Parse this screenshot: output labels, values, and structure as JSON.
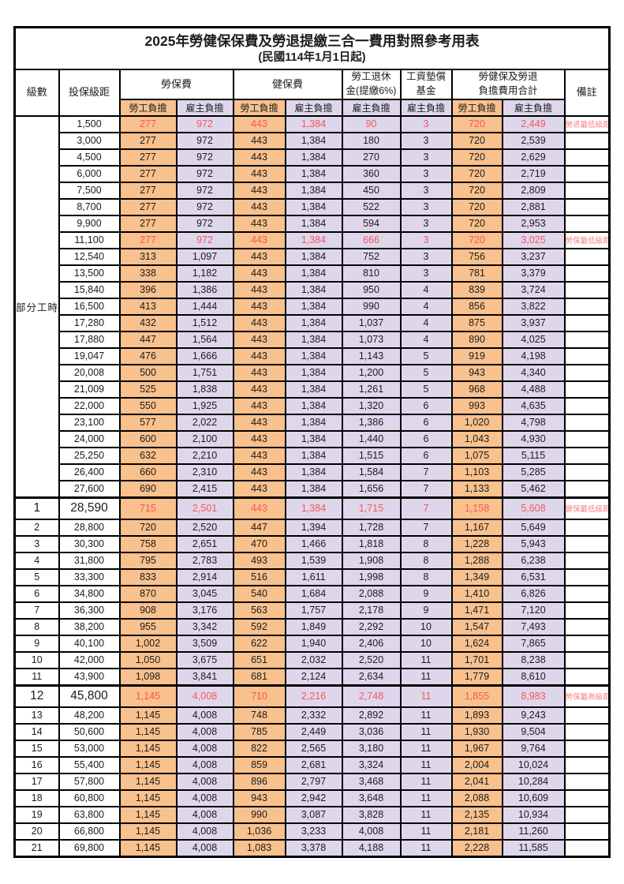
{
  "title": "2025年勞健保保費及勞退提繳三合一費用對照參考用表",
  "subtitle": "(民國114年1月1日起)",
  "colors": {
    "employee_col_bg": "#f9c18d",
    "employer_col_bg": "#ded7ec",
    "highlight_red": "#f75757",
    "remark_red": "#f98080",
    "border": "#000000"
  },
  "header": {
    "level": "級數",
    "bracket": "投保級距",
    "labor_insurance": "勞保費",
    "health_insurance": "健保費",
    "pension_line1": "勞工退休",
    "pension_line2": "金(提繳6%)",
    "wage_fund_line1": "工資墊償",
    "wage_fund_line2": "基金",
    "total_line1": "勞健保及勞退",
    "total_line2": "負擔費用合計",
    "remark": "備註",
    "employee_share": "勞工負擔",
    "employer_share": "雇主負擔"
  },
  "part_time_label": "部分工時",
  "part_time_row_count": 23,
  "rows": [
    {
      "lv": "",
      "amt": "1,500",
      "c": [
        "277",
        "972",
        "443",
        "1,384",
        "90",
        "3",
        "720",
        "2,449"
      ],
      "rm": "勞退最低級距",
      "red": true,
      "big": false
    },
    {
      "lv": "",
      "amt": "3,000",
      "c": [
        "277",
        "972",
        "443",
        "1,384",
        "180",
        "3",
        "720",
        "2,539"
      ],
      "rm": "",
      "red": false,
      "big": false
    },
    {
      "lv": "",
      "amt": "4,500",
      "c": [
        "277",
        "972",
        "443",
        "1,384",
        "270",
        "3",
        "720",
        "2,629"
      ],
      "rm": "",
      "red": false,
      "big": false
    },
    {
      "lv": "",
      "amt": "6,000",
      "c": [
        "277",
        "972",
        "443",
        "1,384",
        "360",
        "3",
        "720",
        "2,719"
      ],
      "rm": "",
      "red": false,
      "big": false
    },
    {
      "lv": "",
      "amt": "7,500",
      "c": [
        "277",
        "972",
        "443",
        "1,384",
        "450",
        "3",
        "720",
        "2,809"
      ],
      "rm": "",
      "red": false,
      "big": false
    },
    {
      "lv": "",
      "amt": "8,700",
      "c": [
        "277",
        "972",
        "443",
        "1,384",
        "522",
        "3",
        "720",
        "2,881"
      ],
      "rm": "",
      "red": false,
      "big": false
    },
    {
      "lv": "",
      "amt": "9,900",
      "c": [
        "277",
        "972",
        "443",
        "1,384",
        "594",
        "3",
        "720",
        "2,953"
      ],
      "rm": "",
      "red": false,
      "big": false
    },
    {
      "lv": "",
      "amt": "11,100",
      "c": [
        "277",
        "972",
        "443",
        "1,384",
        "666",
        "3",
        "720",
        "3,025"
      ],
      "rm": "勞保最低級距",
      "red": true,
      "big": false
    },
    {
      "lv": "",
      "amt": "12,540",
      "c": [
        "313",
        "1,097",
        "443",
        "1,384",
        "752",
        "3",
        "756",
        "3,237"
      ],
      "rm": "",
      "red": false,
      "big": false
    },
    {
      "lv": "",
      "amt": "13,500",
      "c": [
        "338",
        "1,182",
        "443",
        "1,384",
        "810",
        "3",
        "781",
        "3,379"
      ],
      "rm": "",
      "red": false,
      "big": false
    },
    {
      "lv": "",
      "amt": "15,840",
      "c": [
        "396",
        "1,386",
        "443",
        "1,384",
        "950",
        "4",
        "839",
        "3,724"
      ],
      "rm": "",
      "red": false,
      "big": false
    },
    {
      "lv": "",
      "amt": "16,500",
      "c": [
        "413",
        "1,444",
        "443",
        "1,384",
        "990",
        "4",
        "856",
        "3,822"
      ],
      "rm": "",
      "red": false,
      "big": false
    },
    {
      "lv": "",
      "amt": "17,280",
      "c": [
        "432",
        "1,512",
        "443",
        "1,384",
        "1,037",
        "4",
        "875",
        "3,937"
      ],
      "rm": "",
      "red": false,
      "big": false
    },
    {
      "lv": "",
      "amt": "17,880",
      "c": [
        "447",
        "1,564",
        "443",
        "1,384",
        "1,073",
        "4",
        "890",
        "4,025"
      ],
      "rm": "",
      "red": false,
      "big": false
    },
    {
      "lv": "",
      "amt": "19,047",
      "c": [
        "476",
        "1,666",
        "443",
        "1,384",
        "1,143",
        "5",
        "919",
        "4,198"
      ],
      "rm": "",
      "red": false,
      "big": false
    },
    {
      "lv": "",
      "amt": "20,008",
      "c": [
        "500",
        "1,751",
        "443",
        "1,384",
        "1,200",
        "5",
        "943",
        "4,340"
      ],
      "rm": "",
      "red": false,
      "big": false
    },
    {
      "lv": "",
      "amt": "21,009",
      "c": [
        "525",
        "1,838",
        "443",
        "1,384",
        "1,261",
        "5",
        "968",
        "4,488"
      ],
      "rm": "",
      "red": false,
      "big": false
    },
    {
      "lv": "",
      "amt": "22,000",
      "c": [
        "550",
        "1,925",
        "443",
        "1,384",
        "1,320",
        "6",
        "993",
        "4,635"
      ],
      "rm": "",
      "red": false,
      "big": false
    },
    {
      "lv": "",
      "amt": "23,100",
      "c": [
        "577",
        "2,022",
        "443",
        "1,384",
        "1,386",
        "6",
        "1,020",
        "4,798"
      ],
      "rm": "",
      "red": false,
      "big": false
    },
    {
      "lv": "",
      "amt": "24,000",
      "c": [
        "600",
        "2,100",
        "443",
        "1,384",
        "1,440",
        "6",
        "1,043",
        "4,930"
      ],
      "rm": "",
      "red": false,
      "big": false
    },
    {
      "lv": "",
      "amt": "25,250",
      "c": [
        "632",
        "2,210",
        "443",
        "1,384",
        "1,515",
        "6",
        "1,075",
        "5,115"
      ],
      "rm": "",
      "red": false,
      "big": false
    },
    {
      "lv": "",
      "amt": "26,400",
      "c": [
        "660",
        "2,310",
        "443",
        "1,384",
        "1,584",
        "7",
        "1,103",
        "5,285"
      ],
      "rm": "",
      "red": false,
      "big": false
    },
    {
      "lv": "",
      "amt": "27,600",
      "c": [
        "690",
        "2,415",
        "443",
        "1,384",
        "1,656",
        "7",
        "1,133",
        "5,462"
      ],
      "rm": "",
      "red": false,
      "big": false
    },
    {
      "lv": "1",
      "amt": "28,590",
      "c": [
        "715",
        "2,501",
        "443",
        "1,384",
        "1,715",
        "7",
        "1,158",
        "5,608"
      ],
      "rm": "健保最低級距",
      "red": true,
      "big": true
    },
    {
      "lv": "2",
      "amt": "28,800",
      "c": [
        "720",
        "2,520",
        "447",
        "1,394",
        "1,728",
        "7",
        "1,167",
        "5,649"
      ],
      "rm": "",
      "red": false,
      "big": false
    },
    {
      "lv": "3",
      "amt": "30,300",
      "c": [
        "758",
        "2,651",
        "470",
        "1,466",
        "1,818",
        "8",
        "1,228",
        "5,943"
      ],
      "rm": "",
      "red": false,
      "big": false
    },
    {
      "lv": "4",
      "amt": "31,800",
      "c": [
        "795",
        "2,783",
        "493",
        "1,539",
        "1,908",
        "8",
        "1,288",
        "6,238"
      ],
      "rm": "",
      "red": false,
      "big": false
    },
    {
      "lv": "5",
      "amt": "33,300",
      "c": [
        "833",
        "2,914",
        "516",
        "1,611",
        "1,998",
        "8",
        "1,349",
        "6,531"
      ],
      "rm": "",
      "red": false,
      "big": false
    },
    {
      "lv": "6",
      "amt": "34,800",
      "c": [
        "870",
        "3,045",
        "540",
        "1,684",
        "2,088",
        "9",
        "1,410",
        "6,826"
      ],
      "rm": "",
      "red": false,
      "big": false
    },
    {
      "lv": "7",
      "amt": "36,300",
      "c": [
        "908",
        "3,176",
        "563",
        "1,757",
        "2,178",
        "9",
        "1,471",
        "7,120"
      ],
      "rm": "",
      "red": false,
      "big": false
    },
    {
      "lv": "8",
      "amt": "38,200",
      "c": [
        "955",
        "3,342",
        "592",
        "1,849",
        "2,292",
        "10",
        "1,547",
        "7,493"
      ],
      "rm": "",
      "red": false,
      "big": false
    },
    {
      "lv": "9",
      "amt": "40,100",
      "c": [
        "1,002",
        "3,509",
        "622",
        "1,940",
        "2,406",
        "10",
        "1,624",
        "7,865"
      ],
      "rm": "",
      "red": false,
      "big": false
    },
    {
      "lv": "10",
      "amt": "42,000",
      "c": [
        "1,050",
        "3,675",
        "651",
        "2,032",
        "2,520",
        "11",
        "1,701",
        "8,238"
      ],
      "rm": "",
      "red": false,
      "big": false
    },
    {
      "lv": "11",
      "amt": "43,900",
      "c": [
        "1,098",
        "3,841",
        "681",
        "2,124",
        "2,634",
        "11",
        "1,779",
        "8,610"
      ],
      "rm": "",
      "red": false,
      "big": false
    },
    {
      "lv": "12",
      "amt": "45,800",
      "c": [
        "1,145",
        "4,008",
        "710",
        "2,216",
        "2,748",
        "11",
        "1,855",
        "8,983"
      ],
      "rm": "勞保最高級距",
      "red": true,
      "big": true
    },
    {
      "lv": "13",
      "amt": "48,200",
      "c": [
        "1,145",
        "4,008",
        "748",
        "2,332",
        "2,892",
        "11",
        "1,893",
        "9,243"
      ],
      "rm": "",
      "red": false,
      "big": false
    },
    {
      "lv": "14",
      "amt": "50,600",
      "c": [
        "1,145",
        "4,008",
        "785",
        "2,449",
        "3,036",
        "11",
        "1,930",
        "9,504"
      ],
      "rm": "",
      "red": false,
      "big": false
    },
    {
      "lv": "15",
      "amt": "53,000",
      "c": [
        "1,145",
        "4,008",
        "822",
        "2,565",
        "3,180",
        "11",
        "1,967",
        "9,764"
      ],
      "rm": "",
      "red": false,
      "big": false
    },
    {
      "lv": "16",
      "amt": "55,400",
      "c": [
        "1,145",
        "4,008",
        "859",
        "2,681",
        "3,324",
        "11",
        "2,004",
        "10,024"
      ],
      "rm": "",
      "red": false,
      "big": false
    },
    {
      "lv": "17",
      "amt": "57,800",
      "c": [
        "1,145",
        "4,008",
        "896",
        "2,797",
        "3,468",
        "11",
        "2,041",
        "10,284"
      ],
      "rm": "",
      "red": false,
      "big": false
    },
    {
      "lv": "18",
      "amt": "60,800",
      "c": [
        "1,145",
        "4,008",
        "943",
        "2,942",
        "3,648",
        "11",
        "2,088",
        "10,609"
      ],
      "rm": "",
      "red": false,
      "big": false
    },
    {
      "lv": "19",
      "amt": "63,800",
      "c": [
        "1,145",
        "4,008",
        "990",
        "3,087",
        "3,828",
        "11",
        "2,135",
        "10,934"
      ],
      "rm": "",
      "red": false,
      "big": false
    },
    {
      "lv": "20",
      "amt": "66,800",
      "c": [
        "1,145",
        "4,008",
        "1,036",
        "3,233",
        "4,008",
        "11",
        "2,181",
        "11,260"
      ],
      "rm": "",
      "red": false,
      "big": false
    },
    {
      "lv": "21",
      "amt": "69,800",
      "c": [
        "1,145",
        "4,008",
        "1,083",
        "3,378",
        "4,188",
        "11",
        "2,228",
        "11,585"
      ],
      "rm": "",
      "red": false,
      "big": false
    }
  ]
}
